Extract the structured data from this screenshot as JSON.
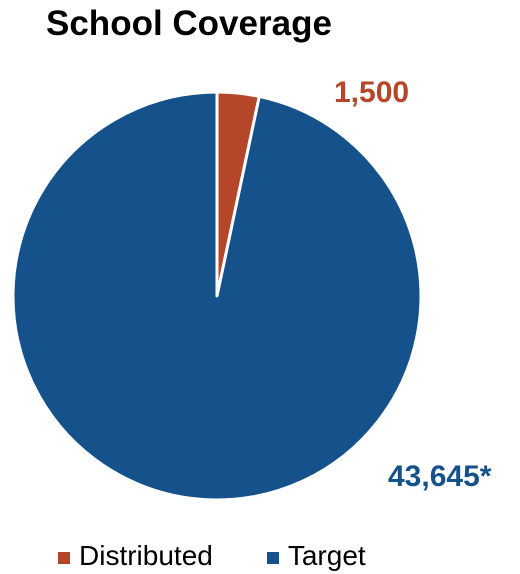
{
  "chart_data": {
    "type": "pie",
    "title": "School Coverage",
    "categories": [
      "Distributed",
      "Target"
    ],
    "values": [
      1500,
      43645
    ],
    "data_labels": [
      "1,500",
      "43,645*"
    ],
    "colors": [
      "#B5462A",
      "#15528C"
    ],
    "legend_placement": "bottom"
  }
}
